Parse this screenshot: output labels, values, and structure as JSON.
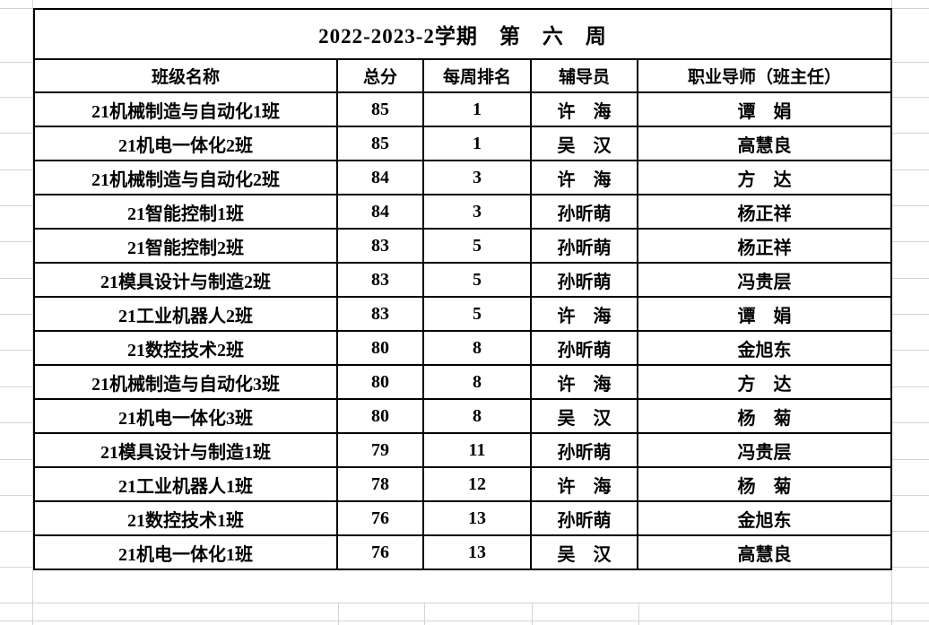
{
  "sheet": {
    "title": "2022-2023-2学期　第　六　周",
    "columns": [
      "班级名称",
      "总分",
      "每周排名",
      "辅导员",
      "职业导师（班主任）"
    ],
    "rows": [
      {
        "class_name": "21机械制造与自动化1班",
        "total_score": "85",
        "weekly_rank": "1",
        "counselor": "许　海",
        "mentor": "谭　娟"
      },
      {
        "class_name": "21机电一体化2班",
        "total_score": "85",
        "weekly_rank": "1",
        "counselor": "吴　汉",
        "mentor": "高慧良"
      },
      {
        "class_name": "21机械制造与自动化2班",
        "total_score": "84",
        "weekly_rank": "3",
        "counselor": "许　海",
        "mentor": "方　达"
      },
      {
        "class_name": "21智能控制1班",
        "total_score": "84",
        "weekly_rank": "3",
        "counselor": "孙昕萌",
        "mentor": "杨正祥"
      },
      {
        "class_name": "21智能控制2班",
        "total_score": "83",
        "weekly_rank": "5",
        "counselor": "孙昕萌",
        "mentor": "杨正祥"
      },
      {
        "class_name": "21模具设计与制造2班",
        "total_score": "83",
        "weekly_rank": "5",
        "counselor": "孙昕萌",
        "mentor": "冯贵层"
      },
      {
        "class_name": "21工业机器人2班",
        "total_score": "83",
        "weekly_rank": "5",
        "counselor": "许　海",
        "mentor": "谭　娟"
      },
      {
        "class_name": "21数控技术2班",
        "total_score": "80",
        "weekly_rank": "8",
        "counselor": "孙昕萌",
        "mentor": "金旭东"
      },
      {
        "class_name": "21机械制造与自动化3班",
        "total_score": "80",
        "weekly_rank": "8",
        "counselor": "许　海",
        "mentor": "方　达"
      },
      {
        "class_name": "21机电一体化3班",
        "total_score": "80",
        "weekly_rank": "8",
        "counselor": "吴　汉",
        "mentor": "杨　菊"
      },
      {
        "class_name": "21模具设计与制造1班",
        "total_score": "79",
        "weekly_rank": "11",
        "counselor": "孙昕萌",
        "mentor": "冯贵层"
      },
      {
        "class_name": "21工业机器人1班",
        "total_score": "78",
        "weekly_rank": "12",
        "counselor": "许　海",
        "mentor": "杨　菊"
      },
      {
        "class_name": "21数控技术1班",
        "total_score": "76",
        "weekly_rank": "13",
        "counselor": "孙昕萌",
        "mentor": "金旭东"
      },
      {
        "class_name": "21机电一体化1班",
        "total_score": "76",
        "weekly_rank": "13",
        "counselor": "吴　汉",
        "mentor": "高慧良"
      }
    ]
  },
  "colors": {
    "table_border": "#000000",
    "text": "#000000",
    "gridline": "#d4d4d4",
    "background": "#ffffff"
  }
}
